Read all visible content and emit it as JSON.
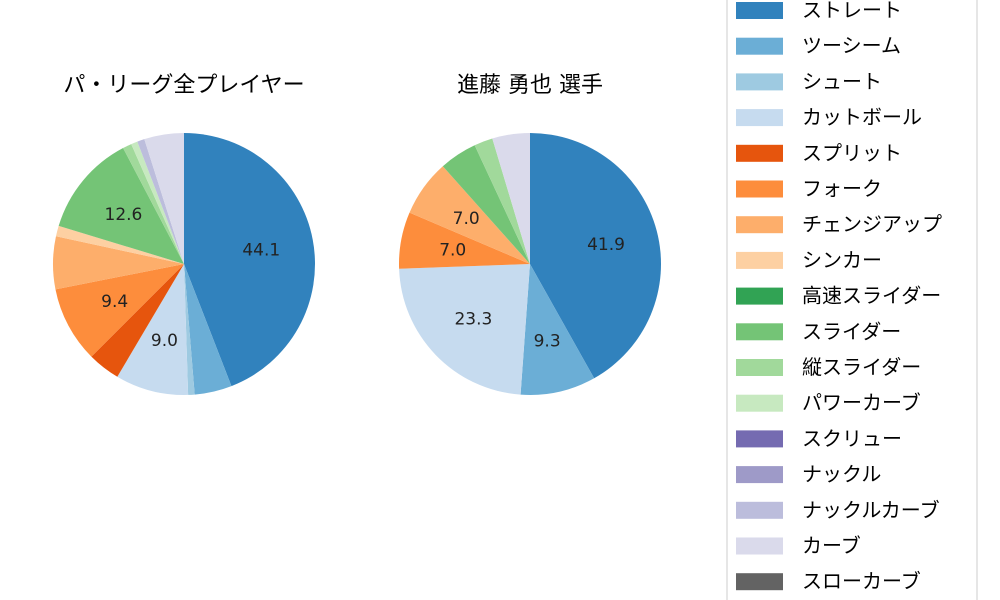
{
  "chart_data": [
    {
      "type": "pie",
      "title": "パ・リーグ全プレイヤー",
      "slices": [
        {
          "label": "ストレート",
          "value": 44.1,
          "color": "#3182bd",
          "shown": "44.1"
        },
        {
          "label": "ツーシーム",
          "value": 4.6,
          "color": "#6baed6",
          "shown": ""
        },
        {
          "label": "シュート",
          "value": 0.8,
          "color": "#9ecae1",
          "shown": ""
        },
        {
          "label": "カットボール",
          "value": 9.0,
          "color": "#c6dbef",
          "shown": "9.0"
        },
        {
          "label": "スプリット",
          "value": 4.0,
          "color": "#e6550d",
          "shown": ""
        },
        {
          "label": "フォーク",
          "value": 9.4,
          "color": "#fd8d3c",
          "shown": "9.4"
        },
        {
          "label": "チェンジアップ",
          "value": 6.5,
          "color": "#fdae6b",
          "shown": ""
        },
        {
          "label": "シンカー",
          "value": 1.3,
          "color": "#fdd0a2",
          "shown": ""
        },
        {
          "label": "高速スライダー",
          "value": 0.0,
          "color": "#31a354",
          "shown": ""
        },
        {
          "label": "スライダー",
          "value": 12.6,
          "color": "#74c476",
          "shown": "12.6"
        },
        {
          "label": "縦スライダー",
          "value": 1.1,
          "color": "#a1d99b",
          "shown": ""
        },
        {
          "label": "パワーカーブ",
          "value": 0.8,
          "color": "#c7e9c0",
          "shown": ""
        },
        {
          "label": "スクリュー",
          "value": 0.0,
          "color": "#756bb1",
          "shown": ""
        },
        {
          "label": "ナックル",
          "value": 0.0,
          "color": "#9e9ac8",
          "shown": ""
        },
        {
          "label": "ナックルカーブ",
          "value": 0.9,
          "color": "#bcbddc",
          "shown": ""
        },
        {
          "label": "カーブ",
          "value": 4.9,
          "color": "#dadaeb",
          "shown": ""
        },
        {
          "label": "スローカーブ",
          "value": 0.0,
          "color": "#636363",
          "shown": ""
        }
      ]
    },
    {
      "type": "pie",
      "title": "進藤 勇也  選手",
      "slices": [
        {
          "label": "ストレート",
          "value": 41.9,
          "color": "#3182bd",
          "shown": "41.9"
        },
        {
          "label": "ツーシーム",
          "value": 9.3,
          "color": "#6baed6",
          "shown": "9.3"
        },
        {
          "label": "カットボール",
          "value": 23.3,
          "color": "#c6dbef",
          "shown": "23.3"
        },
        {
          "label": "フォーク",
          "value": 7.0,
          "color": "#fd8d3c",
          "shown": "7.0"
        },
        {
          "label": "チェンジアップ",
          "value": 7.0,
          "color": "#fdae6b",
          "shown": "7.0"
        },
        {
          "label": "スライダー",
          "value": 4.65,
          "color": "#74c476",
          "shown": ""
        },
        {
          "label": "縦スライダー",
          "value": 2.3,
          "color": "#a1d99b",
          "shown": ""
        },
        {
          "label": "カーブ",
          "value": 4.65,
          "color": "#dadaeb",
          "shown": ""
        }
      ]
    }
  ],
  "legend": {
    "items": [
      {
        "label": "ストレート",
        "color": "#3182bd"
      },
      {
        "label": "ツーシーム",
        "color": "#6baed6"
      },
      {
        "label": "シュート",
        "color": "#9ecae1"
      },
      {
        "label": "カットボール",
        "color": "#c6dbef"
      },
      {
        "label": "スプリット",
        "color": "#e6550d"
      },
      {
        "label": "フォーク",
        "color": "#fd8d3c"
      },
      {
        "label": "チェンジアップ",
        "color": "#fdae6b"
      },
      {
        "label": "シンカー",
        "color": "#fdd0a2"
      },
      {
        "label": "高速スライダー",
        "color": "#31a354"
      },
      {
        "label": "スライダー",
        "color": "#74c476"
      },
      {
        "label": "縦スライダー",
        "color": "#a1d99b"
      },
      {
        "label": "パワーカーブ",
        "color": "#c7e9c0"
      },
      {
        "label": "スクリュー",
        "color": "#756bb1"
      },
      {
        "label": "ナックル",
        "color": "#9e9ac8"
      },
      {
        "label": "ナックルカーブ",
        "color": "#bcbddc"
      },
      {
        "label": "カーブ",
        "color": "#dadaeb"
      },
      {
        "label": "スローカーブ",
        "color": "#636363"
      }
    ]
  }
}
